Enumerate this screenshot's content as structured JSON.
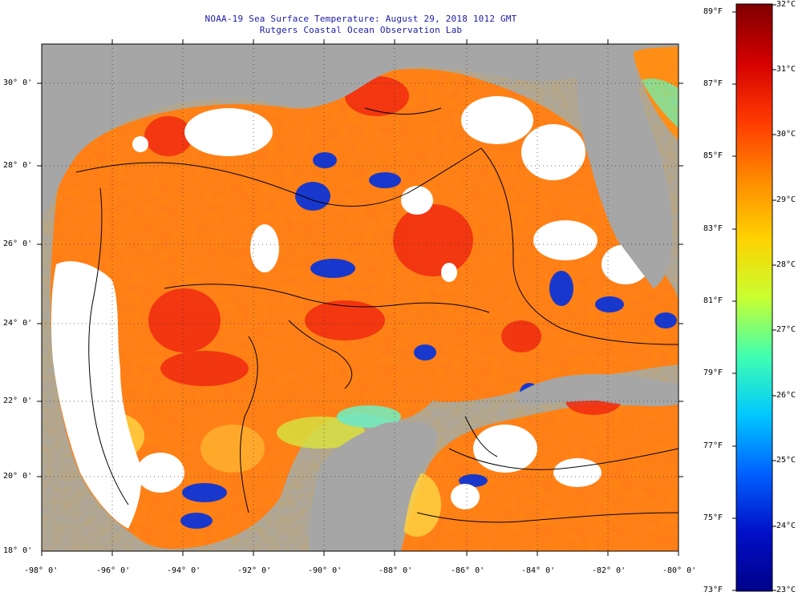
{
  "header": {
    "title": "NOAA-19 Sea Surface Temperature:  August 29, 2018 1012 GMT",
    "subtitle": "Rutgers Coastal Ocean Observation Lab"
  },
  "map": {
    "region": "Gulf of Mexico",
    "lat_range": [
      18,
      31
    ],
    "lon_range": [
      -98,
      -80
    ],
    "lat_labels": [
      "30° 0'",
      "28° 0'",
      "26° 0'",
      "24° 0'",
      "22° 0'",
      "20° 0'",
      "18° 0'"
    ],
    "lon_labels": [
      "-98° 0'",
      "-96° 0'",
      "-94° 0'",
      "-92° 0'",
      "-90° 0'",
      "-88° 0'",
      "-86° 0'",
      "-84° 0'",
      "-82° 0'",
      "-80° 0'"
    ],
    "colors": {
      "land": "#a6a6a6",
      "cloud": "#ffffff",
      "contour": "#000000"
    }
  },
  "colorbar": {
    "fahrenheit_labels": [
      "89°F",
      "87°F",
      "85°F",
      "83°F",
      "81°F",
      "79°F",
      "77°F",
      "75°F",
      "73°F"
    ],
    "celsius_labels": [
      "32°C",
      "31°C",
      "30°C",
      "29°C",
      "28°C",
      "27°C",
      "26°C",
      "25°C",
      "24°C",
      "23°C"
    ],
    "range_c": [
      23,
      32
    ],
    "range_f": [
      73,
      89
    ],
    "colors": [
      "#7f0000",
      "#d40000",
      "#ff3a00",
      "#ff8a00",
      "#ffd200",
      "#c8ff30",
      "#40ffb0",
      "#00c8ff",
      "#0060ff",
      "#0010c8",
      "#00008a"
    ]
  }
}
